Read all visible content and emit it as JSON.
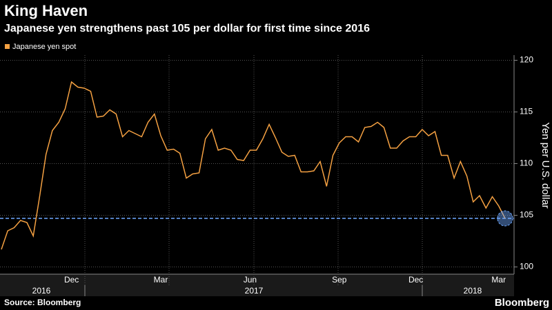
{
  "chart_data": {
    "type": "line",
    "title": "King Haven",
    "subtitle": "Japanese yen strengthens past 105 per dollar for first time since 2016",
    "categories": [
      null,
      null,
      null,
      null,
      null,
      null,
      null,
      null,
      null,
      null,
      null,
      "Dec",
      null,
      null,
      null,
      null,
      null,
      null,
      null,
      null,
      null,
      null,
      null,
      null,
      null,
      "Mar",
      null,
      null,
      null,
      null,
      null,
      null,
      null,
      null,
      null,
      null,
      null,
      null,
      null,
      "Jun",
      null,
      null,
      null,
      null,
      null,
      null,
      null,
      null,
      null,
      null,
      null,
      null,
      null,
      "Sep",
      null,
      null,
      null,
      null,
      null,
      null,
      null,
      null,
      null,
      null,
      null,
      "Dec",
      null,
      null,
      null,
      null,
      null,
      null,
      null,
      null,
      null,
      null,
      null,
      null,
      "Mar",
      null
    ],
    "year_labels": [
      "2016",
      "2017",
      "2018"
    ],
    "series": [
      {
        "name": "Japanese yen spot",
        "color": "#f5a142",
        "values": [
          101.7,
          103.5,
          103.8,
          104.5,
          104.3,
          103.0,
          106.8,
          110.9,
          113.2,
          114.0,
          115.3,
          117.9,
          117.4,
          117.3,
          117.0,
          114.5,
          114.6,
          115.2,
          114.8,
          112.6,
          113.2,
          112.9,
          112.6,
          114.0,
          114.8,
          112.7,
          111.3,
          111.4,
          111.0,
          108.6,
          109.0,
          109.1,
          112.4,
          113.3,
          111.3,
          111.5,
          111.3,
          110.4,
          110.3,
          111.3,
          111.3,
          112.4,
          113.8,
          112.5,
          111.1,
          110.7,
          110.8,
          109.2,
          109.2,
          109.3,
          110.2,
          107.8,
          110.8,
          112.0,
          112.6,
          112.6,
          112.1,
          113.5,
          113.6,
          114.0,
          113.5,
          111.5,
          111.5,
          112.2,
          112.6,
          112.6,
          113.3,
          112.7,
          113.1,
          110.8,
          110.8,
          108.6,
          110.2,
          108.8,
          106.3,
          106.9,
          105.7,
          106.8,
          105.9,
          104.7
        ]
      }
    ],
    "reference_line": 104.7,
    "ylabel": "Yen per U.S. dollar",
    "ylim": [
      99.3,
      120.5
    ],
    "yticks": [
      100,
      105,
      110,
      115,
      120
    ],
    "grid": true,
    "source": "Source: Bloomberg",
    "brand": "Bloomberg"
  }
}
